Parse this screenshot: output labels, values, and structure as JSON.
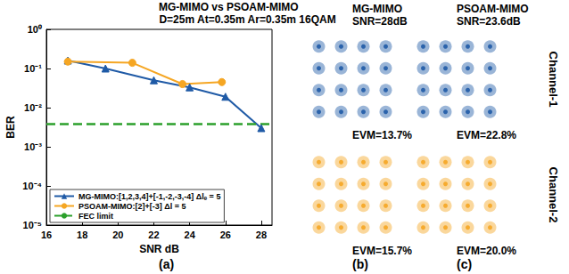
{
  "chart_data": [
    {
      "type": "line",
      "title": "MG-MIMO vs PSOAM-MIMO",
      "subtitle": "D=25m At=0.35m Ar=0.35m 16QAM",
      "x_label": "SNR dB",
      "y_label": "BER",
      "panel_label": "(a)",
      "log": "y",
      "grid": false,
      "legend": "bottom-left",
      "xlim": [
        16,
        28.6
      ],
      "xticks": [
        16,
        18,
        20,
        22,
        24,
        26,
        28
      ],
      "ylim": [
        1e-05,
        1
      ],
      "yticks": [
        {
          "value": 1e-05,
          "label": "10⁻⁵"
        },
        {
          "value": 0.0001,
          "label": "10⁻⁴"
        },
        {
          "value": 0.001,
          "label": "10⁻³"
        },
        {
          "value": 0.01,
          "label": "10⁻²"
        },
        {
          "value": 0.1,
          "label": "10⁻¹"
        },
        {
          "value": 1,
          "label": "10⁰"
        }
      ],
      "series": [
        {
          "name": "MG-MIMO:[1,2,3,4]+[-1,-2,-3,-4] Δlₑ = 5",
          "color": "#1f5aa6",
          "marker": "triangle",
          "line_style": "solid",
          "x": [
            17.2,
            19.3,
            22.0,
            24.0,
            26.0,
            28.0
          ],
          "values": [
            0.16,
            0.1,
            0.05,
            0.033,
            0.019,
            0.003
          ]
        },
        {
          "name": "PSOAM-MIMO:[2]+[-3] Δl = 5",
          "color": "#f5a623",
          "marker": "circle",
          "line_style": "solid",
          "x": [
            17.2,
            20.8,
            23.6,
            25.8
          ],
          "values": [
            0.15,
            0.14,
            0.04,
            0.045
          ]
        },
        {
          "name": "FEC limit",
          "color": "#2ca02c",
          "line_style": "dashed",
          "fec_limit": 0.0038
        }
      ]
    },
    {
      "type": "scatter",
      "title": "MG-MIMO",
      "subtitle": "SNR=28dB",
      "annotation": "EVM=13.7%",
      "color": "#1f5aa6",
      "tick_labels": false,
      "xlim": [
        -4,
        4
      ],
      "ylim": [
        -4,
        4
      ],
      "points": [
        [
          -3,
          -3
        ],
        [
          -3,
          -1
        ],
        [
          -3,
          1
        ],
        [
          -3,
          3
        ],
        [
          -1,
          -3
        ],
        [
          -1,
          -1
        ],
        [
          -1,
          1
        ],
        [
          -1,
          3
        ],
        [
          1,
          -3
        ],
        [
          1,
          -1
        ],
        [
          1,
          1
        ],
        [
          1,
          3
        ],
        [
          3,
          -3
        ],
        [
          3,
          -1
        ],
        [
          3,
          1
        ],
        [
          3,
          3
        ]
      ]
    },
    {
      "type": "scatter",
      "annotation": "EVM=15.7%",
      "panel_label": "(b)",
      "color": "#f5a623",
      "tick_labels": false,
      "xlim": [
        -4,
        4
      ],
      "ylim": [
        -4,
        4
      ],
      "points": [
        [
          -3,
          -3
        ],
        [
          -3,
          -1
        ],
        [
          -3,
          1
        ],
        [
          -3,
          3
        ],
        [
          -1,
          -3
        ],
        [
          -1,
          -1
        ],
        [
          -1,
          1
        ],
        [
          -1,
          3
        ],
        [
          1,
          -3
        ],
        [
          1,
          -1
        ],
        [
          1,
          1
        ],
        [
          1,
          3
        ],
        [
          3,
          -3
        ],
        [
          3,
          -1
        ],
        [
          3,
          1
        ],
        [
          3,
          3
        ]
      ]
    },
    {
      "type": "scatter",
      "title": "PSOAM-MIMO",
      "subtitle": "SNR=23.6dB",
      "annotation": "EVM=22.8%",
      "row_label": "Channel-1",
      "color": "#1f5aa6",
      "tick_labels": false,
      "xlim": [
        -4,
        4
      ],
      "ylim": [
        -4,
        4
      ],
      "points": [
        [
          -3,
          -3
        ],
        [
          -3,
          -1
        ],
        [
          -3,
          1
        ],
        [
          -3,
          3
        ],
        [
          -1,
          -3
        ],
        [
          -1,
          -1
        ],
        [
          -1,
          1
        ],
        [
          -1,
          3
        ],
        [
          1,
          -3
        ],
        [
          1,
          -1
        ],
        [
          1,
          1
        ],
        [
          1,
          3
        ],
        [
          3,
          -3
        ],
        [
          3,
          -1
        ],
        [
          3,
          1
        ],
        [
          3,
          3
        ]
      ]
    },
    {
      "type": "scatter",
      "annotation": "EVM=20.0%",
      "panel_label": "(c)",
      "row_label": "Channel-2",
      "color": "#f5a623",
      "tick_labels": false,
      "xlim": [
        -4,
        4
      ],
      "ylim": [
        -4,
        4
      ],
      "points": [
        [
          -3,
          -3
        ],
        [
          -3,
          -1
        ],
        [
          -3,
          1
        ],
        [
          -3,
          3
        ],
        [
          -1,
          -3
        ],
        [
          -1,
          -1
        ],
        [
          -1,
          1
        ],
        [
          -1,
          3
        ],
        [
          1,
          -3
        ],
        [
          1,
          -1
        ],
        [
          1,
          1
        ],
        [
          1,
          3
        ],
        [
          3,
          -3
        ],
        [
          3,
          -1
        ],
        [
          3,
          1
        ],
        [
          3,
          3
        ]
      ]
    }
  ]
}
